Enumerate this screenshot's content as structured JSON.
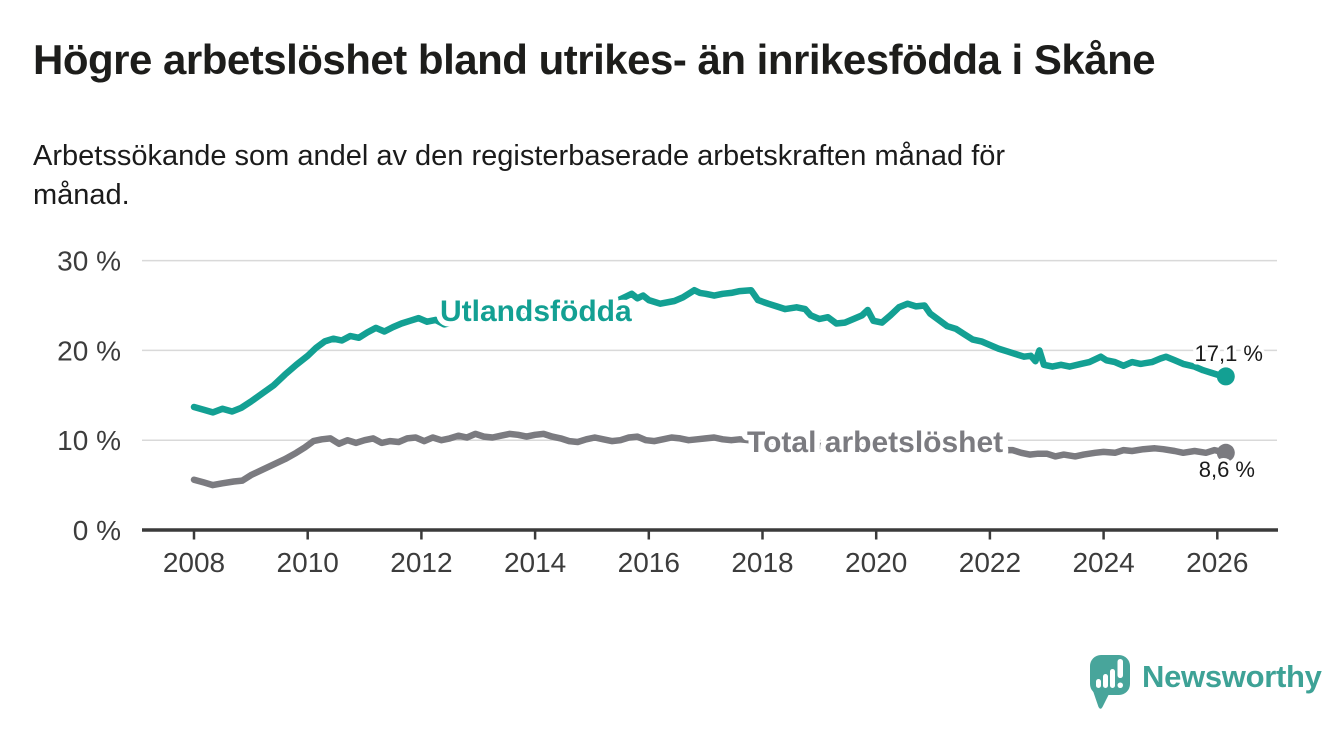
{
  "header": {
    "title": "Högre arbetslöshet bland utrikes- än inrikesfödda i Skåne",
    "subtitle_line1": "Arbetssökande som andel av den registerbaserade arbetskraften månad för",
    "subtitle_line2": "månad."
  },
  "chart_data": {
    "type": "line",
    "title": "Högre arbetslöshet bland utrikes- än inrikesfödda i Skåne",
    "subtitle": "Arbetssökande som andel av den registerbaserade arbetskraften månad för månad.",
    "grid": "horizontal-only",
    "legend_position": "inline-labels",
    "x_axis": {
      "unit": "year",
      "range": [
        2007.1,
        2027.1
      ],
      "ticks": [
        2008,
        2010,
        2012,
        2014,
        2016,
        2018,
        2020,
        2022,
        2024,
        2026
      ]
    },
    "y_axis": {
      "unit": "%",
      "range": [
        0,
        32
      ],
      "ticks": [
        {
          "value": 0,
          "label": "0 %"
        },
        {
          "value": 10,
          "label": "10 %"
        },
        {
          "value": 20,
          "label": "20 %"
        },
        {
          "value": 30,
          "label": "30 %"
        }
      ]
    },
    "series": [
      {
        "name": "Total arbetslöshet",
        "color": "#7b7b80",
        "end_label": "8,6 %",
        "end_value": 8.6,
        "points": [
          [
            2008.0,
            5.6
          ],
          [
            2008.17,
            5.3
          ],
          [
            2008.33,
            5.0
          ],
          [
            2008.5,
            5.2
          ],
          [
            2008.7,
            5.4
          ],
          [
            2008.85,
            5.5
          ],
          [
            2009.0,
            6.1
          ],
          [
            2009.2,
            6.7
          ],
          [
            2009.4,
            7.3
          ],
          [
            2009.6,
            7.9
          ],
          [
            2009.8,
            8.6
          ],
          [
            2009.95,
            9.2
          ],
          [
            2010.1,
            9.9
          ],
          [
            2010.25,
            10.1
          ],
          [
            2010.4,
            10.2
          ],
          [
            2010.55,
            9.6
          ],
          [
            2010.7,
            10.0
          ],
          [
            2010.85,
            9.7
          ],
          [
            2011.0,
            10.0
          ],
          [
            2011.15,
            10.2
          ],
          [
            2011.3,
            9.7
          ],
          [
            2011.45,
            9.9
          ],
          [
            2011.6,
            9.8
          ],
          [
            2011.75,
            10.2
          ],
          [
            2011.9,
            10.3
          ],
          [
            2012.05,
            9.9
          ],
          [
            2012.2,
            10.3
          ],
          [
            2012.35,
            10.0
          ],
          [
            2012.5,
            10.2
          ],
          [
            2012.65,
            10.5
          ],
          [
            2012.8,
            10.3
          ],
          [
            2012.95,
            10.7
          ],
          [
            2013.1,
            10.4
          ],
          [
            2013.25,
            10.3
          ],
          [
            2013.4,
            10.5
          ],
          [
            2013.55,
            10.7
          ],
          [
            2013.7,
            10.6
          ],
          [
            2013.85,
            10.4
          ],
          [
            2014.0,
            10.6
          ],
          [
            2014.15,
            10.7
          ],
          [
            2014.3,
            10.4
          ],
          [
            2014.45,
            10.2
          ],
          [
            2014.6,
            9.9
          ],
          [
            2014.75,
            9.8
          ],
          [
            2014.9,
            10.1
          ],
          [
            2015.05,
            10.3
          ],
          [
            2015.2,
            10.1
          ],
          [
            2015.35,
            9.9
          ],
          [
            2015.5,
            10.0
          ],
          [
            2015.65,
            10.3
          ],
          [
            2015.8,
            10.4
          ],
          [
            2015.95,
            10.0
          ],
          [
            2016.1,
            9.9
          ],
          [
            2016.25,
            10.1
          ],
          [
            2016.4,
            10.3
          ],
          [
            2016.55,
            10.2
          ],
          [
            2016.7,
            10.0
          ],
          [
            2016.85,
            10.1
          ],
          [
            2017.0,
            10.2
          ],
          [
            2017.15,
            10.3
          ],
          [
            2017.3,
            10.1
          ],
          [
            2017.45,
            10.0
          ],
          [
            2017.6,
            10.1
          ],
          [
            2017.75,
            10.0
          ],
          [
            2018.0,
            9.9
          ],
          [
            2018.3,
            9.7
          ],
          [
            2018.6,
            9.6
          ],
          [
            2018.9,
            9.4
          ],
          [
            2019.2,
            9.3
          ],
          [
            2019.5,
            9.2
          ],
          [
            2019.8,
            9.5
          ],
          [
            2020.1,
            9.4
          ],
          [
            2020.4,
            10.0
          ],
          [
            2020.7,
            10.3
          ],
          [
            2021.0,
            10.0
          ],
          [
            2021.3,
            9.7
          ],
          [
            2021.6,
            9.3
          ],
          [
            2021.9,
            9.0
          ],
          [
            2022.1,
            8.9
          ],
          [
            2022.4,
            8.9
          ],
          [
            2022.55,
            8.6
          ],
          [
            2022.7,
            8.4
          ],
          [
            2022.85,
            8.5
          ],
          [
            2023.0,
            8.5
          ],
          [
            2023.15,
            8.2
          ],
          [
            2023.3,
            8.4
          ],
          [
            2023.5,
            8.2
          ],
          [
            2023.65,
            8.4
          ],
          [
            2023.85,
            8.6
          ],
          [
            2024.0,
            8.7
          ],
          [
            2024.2,
            8.6
          ],
          [
            2024.35,
            8.9
          ],
          [
            2024.5,
            8.8
          ],
          [
            2024.7,
            9.0
          ],
          [
            2024.9,
            9.1
          ],
          [
            2025.05,
            9.0
          ],
          [
            2025.25,
            8.8
          ],
          [
            2025.4,
            8.6
          ],
          [
            2025.6,
            8.8
          ],
          [
            2025.8,
            8.6
          ],
          [
            2025.95,
            8.9
          ],
          [
            2026.15,
            8.6
          ]
        ]
      },
      {
        "name": "Utlandsfödda",
        "color": "#13a093",
        "end_label": "17,1 %",
        "end_value": 17.1,
        "points": [
          [
            2008.0,
            13.7
          ],
          [
            2008.17,
            13.4
          ],
          [
            2008.33,
            13.1
          ],
          [
            2008.5,
            13.5
          ],
          [
            2008.67,
            13.2
          ],
          [
            2008.83,
            13.6
          ],
          [
            2009.0,
            14.3
          ],
          [
            2009.2,
            15.2
          ],
          [
            2009.4,
            16.1
          ],
          [
            2009.6,
            17.3
          ],
          [
            2009.8,
            18.4
          ],
          [
            2010.0,
            19.4
          ],
          [
            2010.15,
            20.3
          ],
          [
            2010.3,
            21.0
          ],
          [
            2010.45,
            21.3
          ],
          [
            2010.6,
            21.1
          ],
          [
            2010.75,
            21.6
          ],
          [
            2010.9,
            21.4
          ],
          [
            2011.05,
            22.0
          ],
          [
            2011.2,
            22.5
          ],
          [
            2011.35,
            22.1
          ],
          [
            2011.5,
            22.6
          ],
          [
            2011.65,
            23.0
          ],
          [
            2011.8,
            23.3
          ],
          [
            2011.95,
            23.6
          ],
          [
            2012.1,
            23.2
          ],
          [
            2012.25,
            23.4
          ],
          [
            2012.4,
            22.9
          ],
          [
            2012.55,
            23.1
          ],
          [
            2012.7,
            23.4
          ],
          [
            2012.85,
            23.6
          ],
          [
            2013.0,
            23.8
          ],
          [
            2013.2,
            24.0
          ],
          [
            2013.4,
            24.2
          ],
          [
            2013.6,
            24.4
          ],
          [
            2013.8,
            24.3
          ],
          [
            2014.0,
            24.6
          ],
          [
            2014.2,
            24.4
          ],
          [
            2014.4,
            24.7
          ],
          [
            2014.6,
            24.9
          ],
          [
            2014.8,
            25.1
          ],
          [
            2015.0,
            25.2
          ],
          [
            2015.2,
            25.0
          ],
          [
            2015.4,
            25.4
          ],
          [
            2015.6,
            26.0
          ],
          [
            2015.7,
            26.3
          ],
          [
            2015.8,
            25.8
          ],
          [
            2015.9,
            26.1
          ],
          [
            2016.0,
            25.6
          ],
          [
            2016.2,
            25.2
          ],
          [
            2016.45,
            25.5
          ],
          [
            2016.6,
            25.9
          ],
          [
            2016.8,
            26.7
          ],
          [
            2016.9,
            26.4
          ],
          [
            2017.0,
            26.3
          ],
          [
            2017.15,
            26.1
          ],
          [
            2017.3,
            26.3
          ],
          [
            2017.45,
            26.4
          ],
          [
            2017.6,
            26.6
          ],
          [
            2017.8,
            26.7
          ],
          [
            2017.92,
            25.6
          ],
          [
            2018.1,
            25.2
          ],
          [
            2018.25,
            24.9
          ],
          [
            2018.4,
            24.6
          ],
          [
            2018.6,
            24.8
          ],
          [
            2018.75,
            24.6
          ],
          [
            2018.85,
            23.9
          ],
          [
            2019.0,
            23.5
          ],
          [
            2019.15,
            23.7
          ],
          [
            2019.3,
            23.0
          ],
          [
            2019.45,
            23.1
          ],
          [
            2019.6,
            23.5
          ],
          [
            2019.75,
            23.9
          ],
          [
            2019.85,
            24.5
          ],
          [
            2019.95,
            23.3
          ],
          [
            2020.1,
            23.1
          ],
          [
            2020.25,
            23.9
          ],
          [
            2020.4,
            24.8
          ],
          [
            2020.55,
            25.2
          ],
          [
            2020.7,
            24.9
          ],
          [
            2020.85,
            25.0
          ],
          [
            2020.95,
            24.1
          ],
          [
            2021.1,
            23.4
          ],
          [
            2021.25,
            22.7
          ],
          [
            2021.4,
            22.4
          ],
          [
            2021.55,
            21.8
          ],
          [
            2021.7,
            21.2
          ],
          [
            2021.85,
            21.0
          ],
          [
            2022.0,
            20.6
          ],
          [
            2022.15,
            20.2
          ],
          [
            2022.3,
            19.9
          ],
          [
            2022.45,
            19.6
          ],
          [
            2022.6,
            19.3
          ],
          [
            2022.72,
            19.4
          ],
          [
            2022.8,
            18.8
          ],
          [
            2022.87,
            20.0
          ],
          [
            2022.95,
            18.4
          ],
          [
            2023.1,
            18.2
          ],
          [
            2023.25,
            18.4
          ],
          [
            2023.4,
            18.2
          ],
          [
            2023.6,
            18.5
          ],
          [
            2023.75,
            18.7
          ],
          [
            2023.95,
            19.3
          ],
          [
            2024.05,
            18.9
          ],
          [
            2024.2,
            18.7
          ],
          [
            2024.35,
            18.3
          ],
          [
            2024.5,
            18.7
          ],
          [
            2024.65,
            18.5
          ],
          [
            2024.85,
            18.7
          ],
          [
            2025.0,
            19.1
          ],
          [
            2025.1,
            19.3
          ],
          [
            2025.25,
            18.9
          ],
          [
            2025.4,
            18.5
          ],
          [
            2025.6,
            18.2
          ],
          [
            2025.75,
            17.8
          ],
          [
            2025.9,
            17.5
          ],
          [
            2026.05,
            17.2
          ],
          [
            2026.15,
            17.1
          ]
        ]
      }
    ],
    "colors": {
      "grid": "#d9d9d9",
      "axis": "#3a3a3a",
      "tick_label": "#3c3c3c",
      "annotation_text": "#1b1b1b"
    }
  },
  "branding": {
    "logo_text": "Newsworthy",
    "icon": "newsworthy-bar-chart-bubble-icon",
    "color": "#3ea296"
  }
}
